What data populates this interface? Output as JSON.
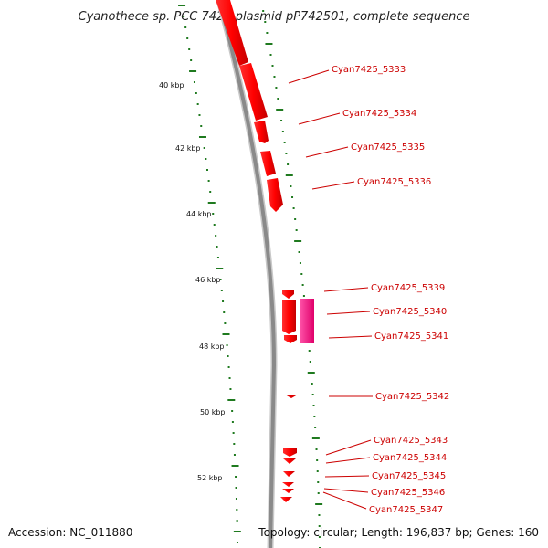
{
  "title": "Cyanothece sp. PCC 7425 plasmid pP742501, complete sequence",
  "accession": "Accession: NC_011880",
  "summary": "Topology: circular; Length: 196,837 bp; Genes: 160",
  "kbp_ticks": [
    "40 kbp",
    "42 kbp",
    "44 kbp",
    "46 kbp",
    "48 kbp",
    "50 kbp",
    "52 kbp"
  ],
  "genes": [
    "Cyan7425_5333",
    "Cyan7425_5334",
    "Cyan7425_5335",
    "Cyan7425_5336",
    "Cyan7425_5339",
    "Cyan7425_5340",
    "Cyan7425_5341",
    "Cyan7425_5342",
    "Cyan7425_5343",
    "Cyan7425_5344",
    "Cyan7425_5345",
    "Cyan7425_5346",
    "Cyan7425_5347"
  ],
  "colors": {
    "backbone": "#8a8a8a",
    "gene": "#ff0000",
    "gene_alt": "#ff2288",
    "label": "#cc0000",
    "tick": "#1f7a1f"
  }
}
